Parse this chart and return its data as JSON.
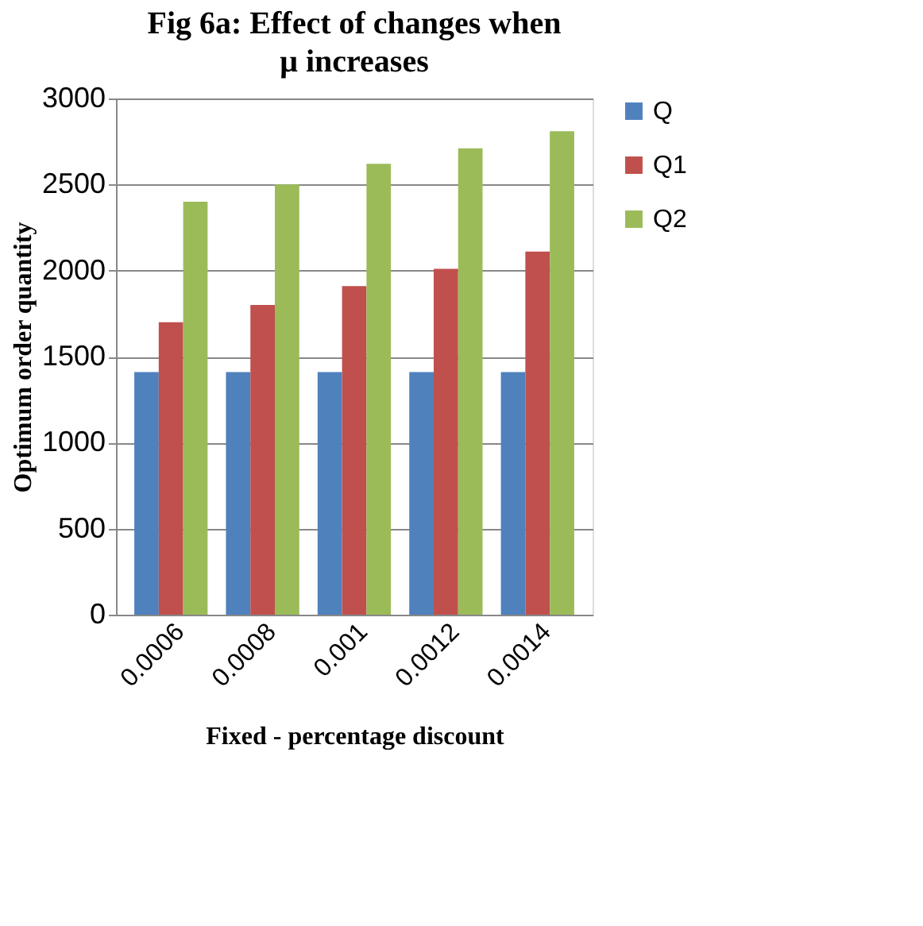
{
  "chart_data": {
    "type": "bar",
    "title": "Fig 6a: Effect of changes when μ increases",
    "xlabel": "Fixed - percentage discount",
    "ylabel": "Optimum order quantity",
    "categories": [
      "0.0006",
      "0.0008",
      "0.001",
      "0.0012",
      "0.0014"
    ],
    "series": [
      {
        "name": "Q",
        "color": "#4f81bd",
        "values": [
          1410,
          1410,
          1410,
          1410,
          1410
        ]
      },
      {
        "name": "Q1",
        "color": "#c0504d",
        "values": [
          1700,
          1800,
          1910,
          2010,
          2110
        ]
      },
      {
        "name": "Q2",
        "color": "#9bbb59",
        "values": [
          2400,
          2500,
          2620,
          2710,
          2810
        ]
      }
    ],
    "ylim": [
      0,
      3000
    ],
    "yticks": [
      0,
      500,
      1000,
      1500,
      2000,
      2500,
      3000
    ],
    "grid": "y",
    "legend": "right"
  }
}
